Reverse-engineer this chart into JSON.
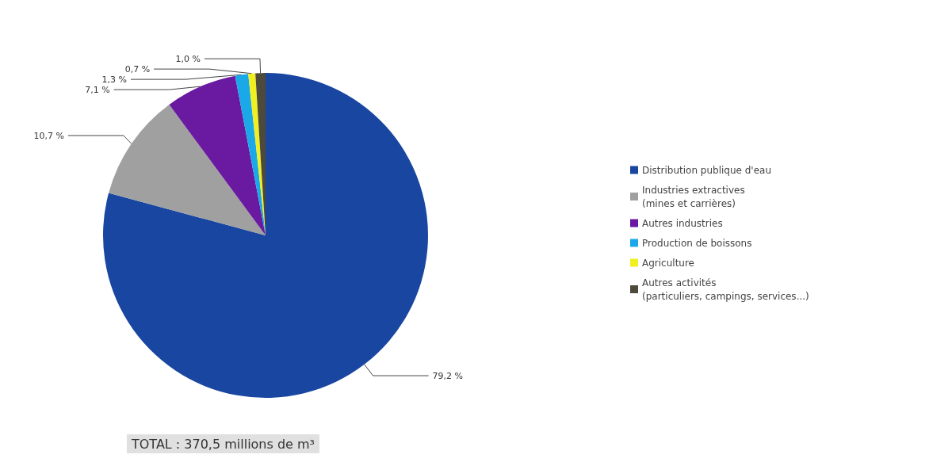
{
  "chart_data": {
    "type": "pie",
    "categories": [
      "Distribution publique d'eau",
      "Industries extractives\n(mines et carrières)",
      "Autres industries",
      "Production de boissons",
      "Agriculture",
      "Autres activités\n(particuliers, campings, services...)"
    ],
    "values": [
      79.2,
      10.7,
      7.1,
      1.3,
      0.7,
      1.0
    ],
    "value_labels": [
      "79,2 %",
      "10,7 %",
      "7,1 %",
      "1,3 %",
      "0,7 %",
      "1,0 %"
    ],
    "colors": [
      "#1846a0",
      "#a0a0a0",
      "#6a1aa0",
      "#1aa8e8",
      "#f0f020",
      "#4d4a3c"
    ],
    "legend": "right",
    "annotations": [
      "TOTAL : 370,5 millions de m³"
    ]
  }
}
